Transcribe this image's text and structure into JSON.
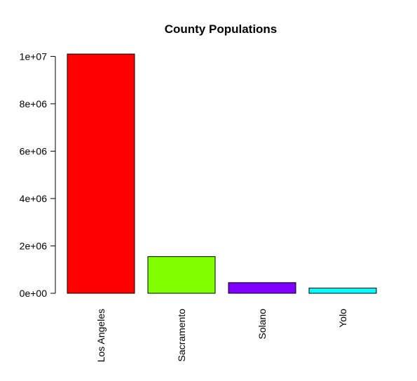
{
  "chart_data": {
    "type": "bar",
    "title": "County Populations",
    "xlabel": "",
    "ylabel": "",
    "categories": [
      "Los Angeles",
      "Sacramento",
      "Solano",
      "Yolo"
    ],
    "values": [
      10100000,
      1550000,
      450000,
      220000
    ],
    "colors": [
      "#ff0000",
      "#80ff00",
      "#8000ff",
      "#00ffff"
    ],
    "yticks": [
      0,
      2000000,
      4000000,
      6000000,
      8000000,
      10000000
    ],
    "ytick_labels": [
      "0e+00",
      "2e+06",
      "4e+06",
      "6e+06",
      "8e+06",
      "1e+07"
    ],
    "ylim": [
      0,
      10100000
    ],
    "grid": false,
    "legend": "none"
  }
}
